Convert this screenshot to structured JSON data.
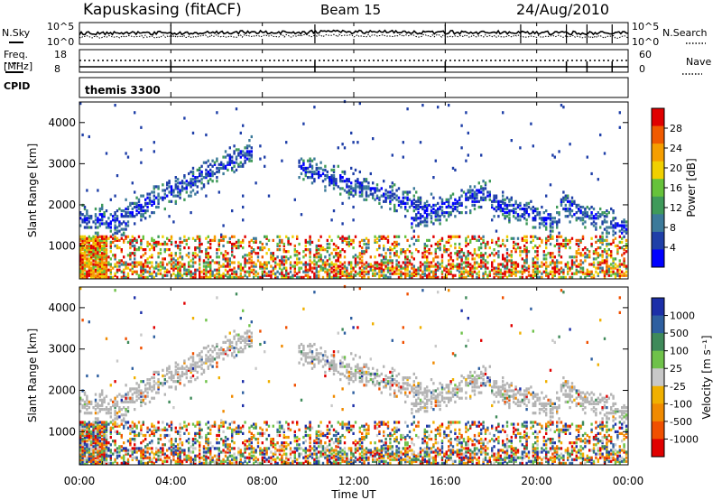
{
  "header": {
    "station": "Kapuskasing (fitACF)",
    "beam": "Beam 15",
    "date": "24/Aug/2010"
  },
  "noise_panel": {
    "left_label": "N.Sky",
    "right_label": "N.Search",
    "left_ticks": [
      "10^5",
      "10^0"
    ],
    "right_ticks": [
      "10^5",
      "10^0"
    ]
  },
  "freq_panel": {
    "left_label_1": "Freq.",
    "left_label_2": "[MHz]",
    "right_label": "Nave",
    "left_ticks": [
      "18",
      "8"
    ],
    "right_ticks": [
      "60",
      "0"
    ]
  },
  "cpid_panel": {
    "label": "CPID",
    "program": "themis 3300"
  },
  "colors": {
    "power_scale": [
      "#0000ff",
      "#1f3fa8",
      "#3c7a9a",
      "#3f9a5a",
      "#66c23a",
      "#f0d000",
      "#f59e00",
      "#f05a00",
      "#e00000"
    ],
    "velocity_scale": [
      "#1c2fa8",
      "#2e5fa0",
      "#3f8a5a",
      "#6fc24a",
      "#c8c8c8",
      "#f0b000",
      "#f08a00",
      "#f05000",
      "#e00000"
    ],
    "ground_scatter": "#b4b4b4"
  },
  "chart_data": [
    {
      "type": "heatmap",
      "name": "power",
      "ylabel": "Slant Range [km]",
      "y_ticks": [
        1000,
        2000,
        3000,
        4000
      ],
      "ylim": [
        200,
        4500
      ],
      "xlim": [
        0,
        24
      ],
      "x_ticks": [
        "00:00",
        "04:00",
        "08:00",
        "12:00",
        "16:00",
        "20:00",
        "00:00"
      ],
      "colorbar_label": "Power [dB]",
      "colorbar_ticks": [
        "4",
        "8",
        "12",
        "16",
        "20",
        "24",
        "28"
      ],
      "colorbar_range": [
        0,
        30
      ]
    },
    {
      "type": "heatmap",
      "name": "velocity",
      "ylabel": "Slant Range [km]",
      "y_ticks": [
        1000,
        2000,
        3000,
        4000
      ],
      "ylim": [
        200,
        4500
      ],
      "xlim": [
        0,
        24
      ],
      "x_ticks": [
        "00:00",
        "04:00",
        "08:00",
        "12:00",
        "16:00",
        "20:00",
        "00:00"
      ],
      "xlabel": "Time UT",
      "colorbar_label": "Velocity [m s⁻¹]",
      "colorbar_ticks": [
        "1000",
        "500",
        "100",
        "25",
        "-25",
        "-100",
        "-500",
        "-1000"
      ]
    }
  ]
}
